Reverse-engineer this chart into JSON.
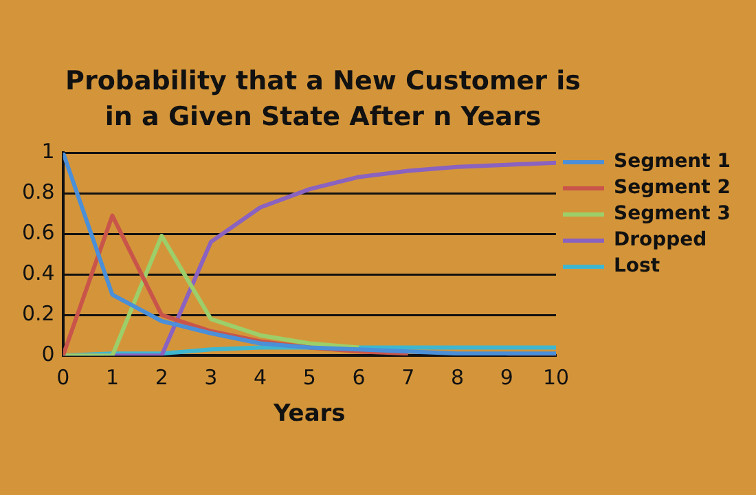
{
  "chart_data": {
    "type": "line",
    "title": "Probability that a New Customer is in a Given State After n Years",
    "xlabel": "Years",
    "x": [
      0,
      1,
      2,
      3,
      4,
      5,
      6,
      7,
      8,
      9,
      10
    ],
    "series": [
      {
        "name": "Segment 1",
        "color": "#4a8fd8",
        "values": [
          1,
          0.3,
          0.17,
          0.11,
          0.06,
          0.04,
          0.03,
          0.02,
          0.01,
          0.01,
          0.01
        ]
      },
      {
        "name": "Segment 2",
        "color": "#c9554a",
        "values": [
          0,
          0.69,
          0.2,
          0.12,
          0.07,
          0.04,
          0.02,
          0.01,
          null,
          0,
          0
        ]
      },
      {
        "name": "Segment 3",
        "color": "#9ccf6a",
        "values": [
          0,
          0,
          0.59,
          0.18,
          0.1,
          0.06,
          0.04,
          null,
          null,
          null,
          null
        ]
      },
      {
        "name": "Dropped",
        "color": "#8a62c0",
        "values": [
          0,
          0,
          0,
          0.56,
          0.73,
          0.82,
          0.88,
          0.91,
          0.93,
          0.94,
          0.95
        ]
      },
      {
        "name": "Lost",
        "color": "#3fb6d0",
        "values": [
          0,
          0.01,
          0.01,
          0.03,
          0.04,
          0.04,
          0.04,
          0.04,
          0.04,
          0.04,
          0.04
        ]
      }
    ],
    "xlim": [
      0,
      10
    ],
    "xticks": [
      0,
      1,
      2,
      3,
      4,
      5,
      6,
      7,
      8,
      9,
      10
    ],
    "ylim": [
      0,
      1
    ],
    "yticks": [
      0,
      0.2,
      0.4,
      0.6,
      0.8,
      1
    ],
    "grid": "y",
    "legend": "right",
    "marker": "none",
    "line_style": "solid"
  }
}
